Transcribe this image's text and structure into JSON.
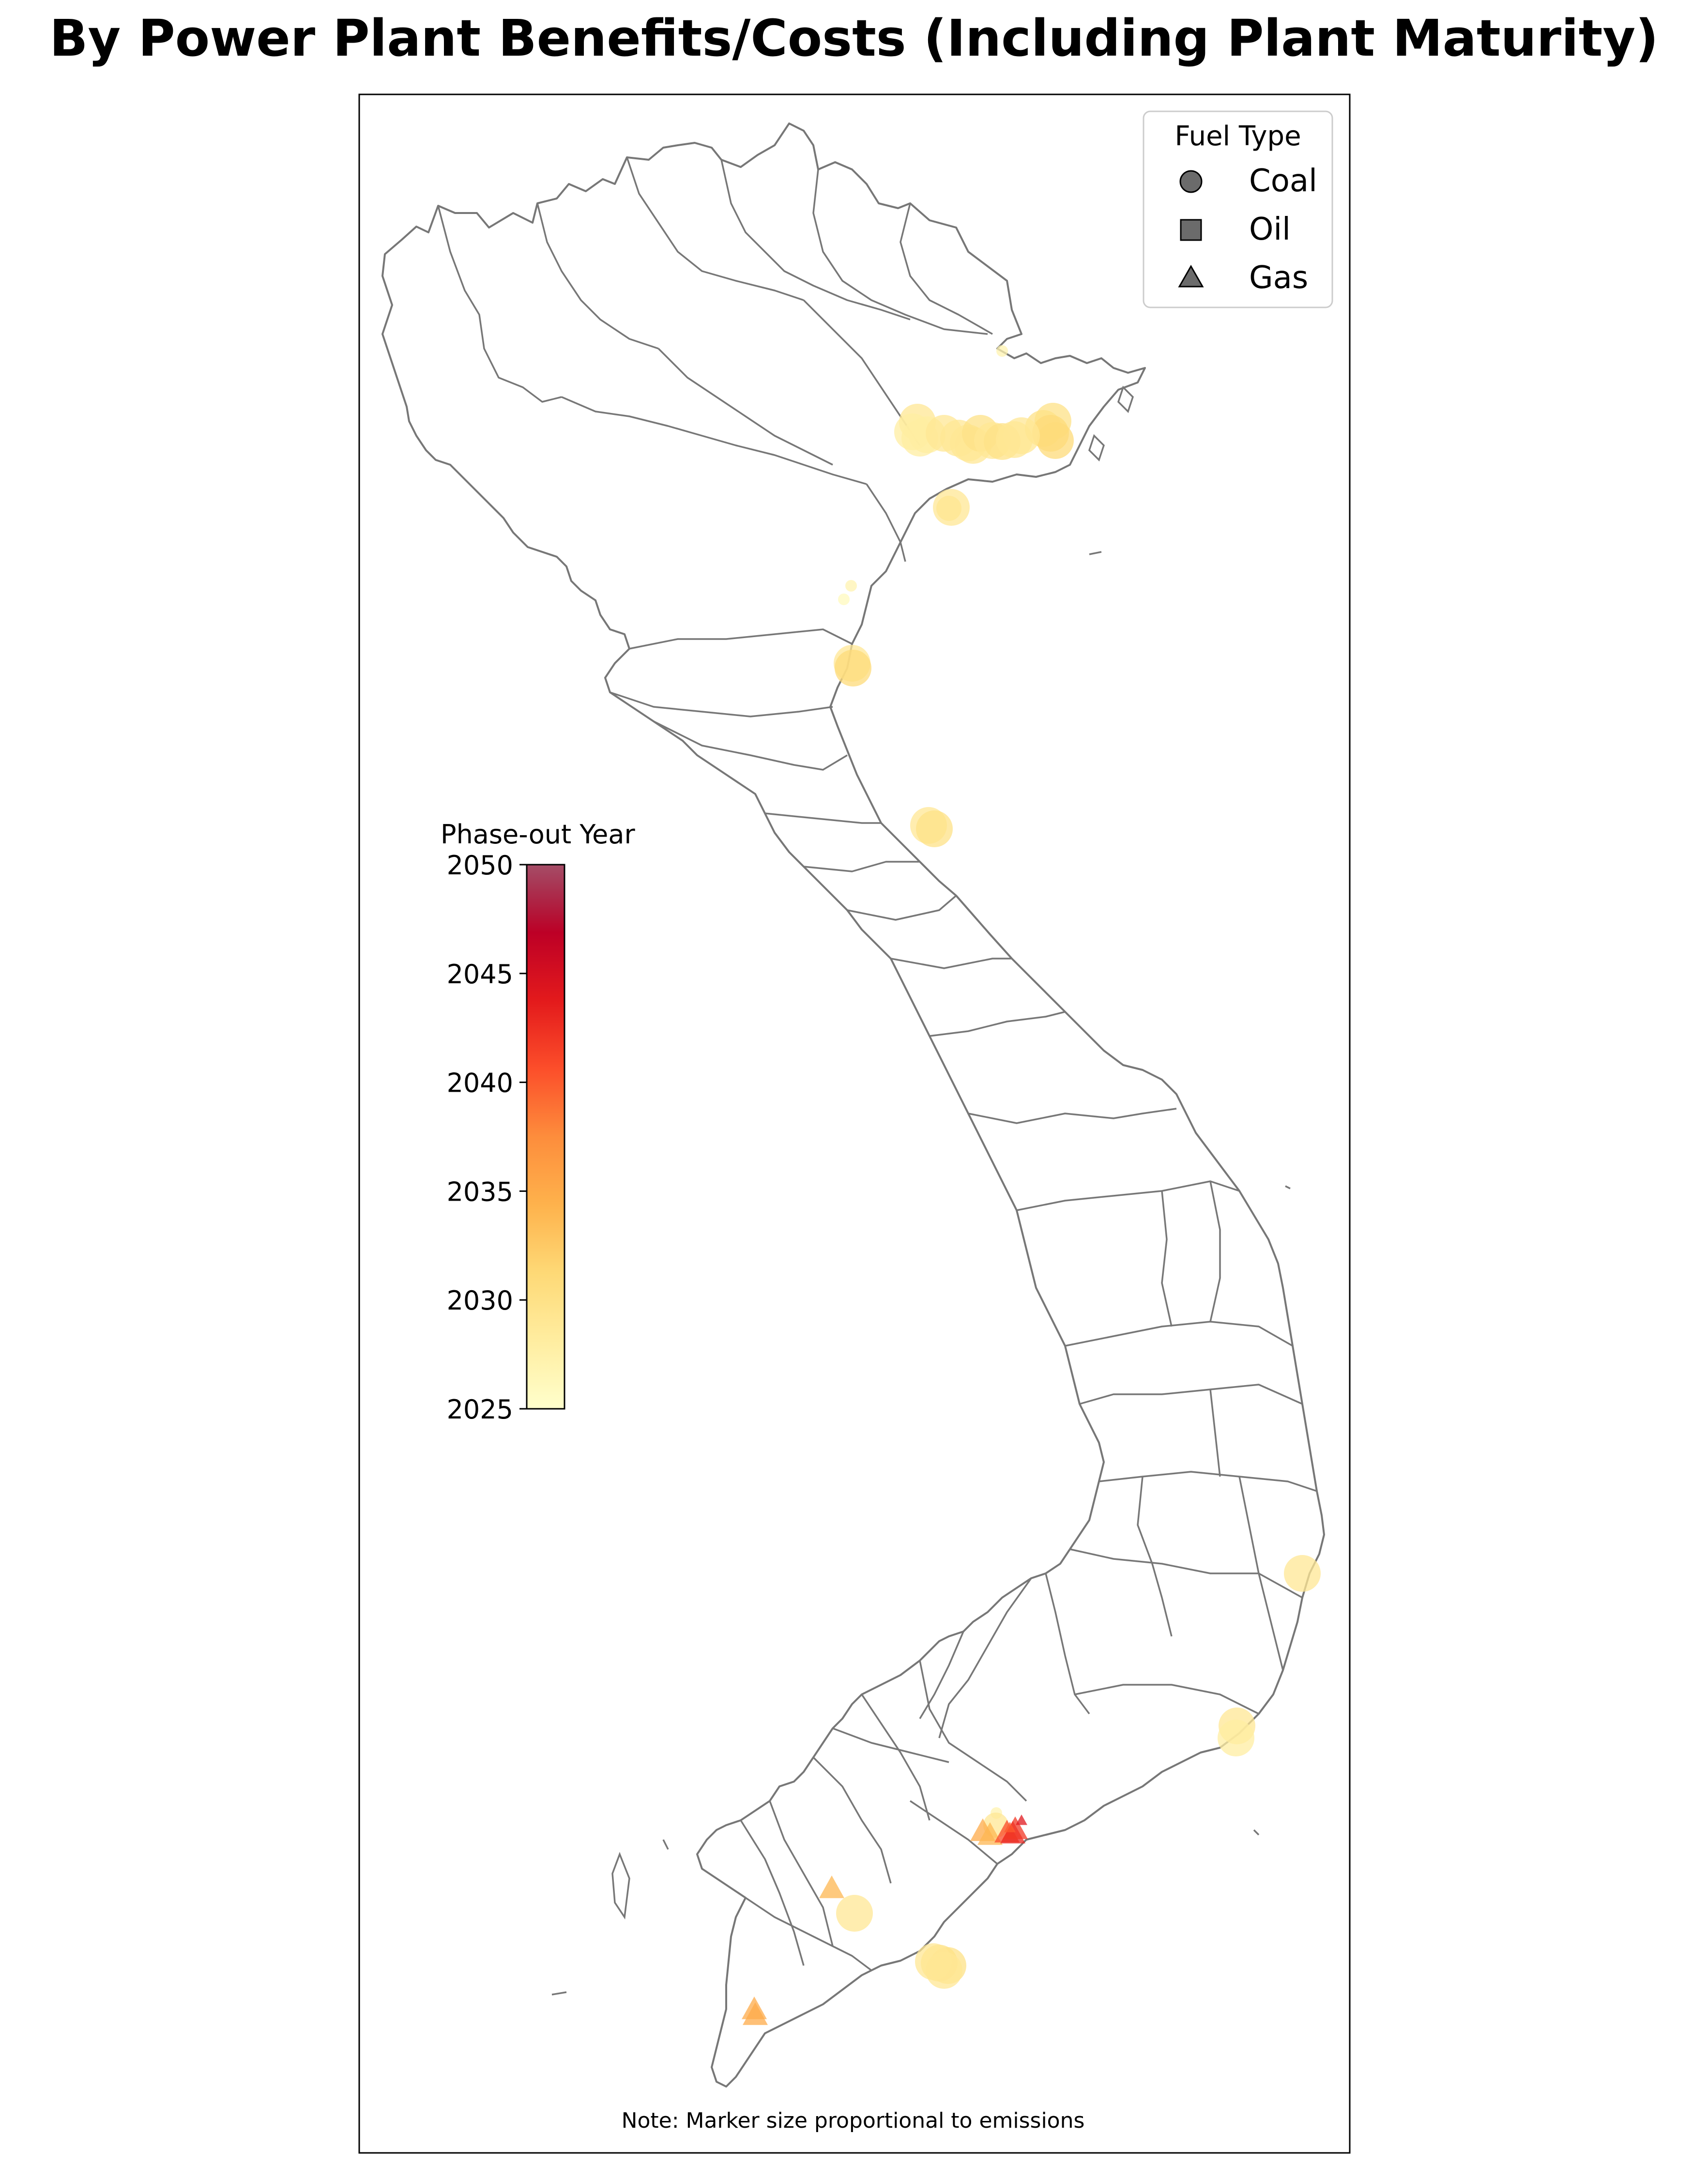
{
  "title": "By Power Plant Benefits/Costs (Including Plant Maturity)",
  "legend": {
    "title": "Fuel Type",
    "items": [
      {
        "label": "Coal",
        "shape": "circle"
      },
      {
        "label": "Oil",
        "shape": "square"
      },
      {
        "label": "Gas",
        "shape": "triangle"
      }
    ]
  },
  "colorbar": {
    "title": "Phase-out Year",
    "min": 2025,
    "max": 2050,
    "ticks": [
      "2025",
      "2030",
      "2035",
      "2040",
      "2045",
      "2050"
    ],
    "colors": [
      "#ffffcc",
      "#ffeda0",
      "#fed976",
      "#feb24c",
      "#fd8d3c",
      "#fc4e2a",
      "#e31a1c",
      "#bd0026",
      "#800026"
    ]
  },
  "note": "Note: Marker size proportional to emissions",
  "plants": [
    {
      "fuel": "Coal",
      "year": 2027,
      "size": "small"
    },
    {
      "fuel": "Coal",
      "year": 2026,
      "size": "small"
    },
    {
      "fuel": "Coal",
      "year": 2030,
      "size": "medium"
    },
    {
      "fuel": "Coal",
      "year": 2029,
      "size": "large"
    },
    {
      "fuel": "Coal",
      "year": 2028,
      "size": "large"
    },
    {
      "fuel": "Coal",
      "year": 2028,
      "size": "large"
    },
    {
      "fuel": "Coal",
      "year": 2028,
      "size": "large"
    },
    {
      "fuel": "Coal",
      "year": 2029,
      "size": "large"
    },
    {
      "fuel": "Coal",
      "year": 2029,
      "size": "large"
    },
    {
      "fuel": "Coal",
      "year": 2029,
      "size": "large"
    },
    {
      "fuel": "Coal",
      "year": 2029,
      "size": "large"
    },
    {
      "fuel": "Coal",
      "year": 2030,
      "size": "large"
    },
    {
      "fuel": "Coal",
      "year": 2029,
      "size": "large"
    },
    {
      "fuel": "Coal",
      "year": 2030,
      "size": "large"
    },
    {
      "fuel": "Coal",
      "year": 2029,
      "size": "large"
    },
    {
      "fuel": "Coal",
      "year": 2027,
      "size": "small"
    },
    {
      "fuel": "Coal",
      "year": 2030,
      "size": "large"
    },
    {
      "fuel": "Coal",
      "year": 2030,
      "size": "large"
    },
    {
      "fuel": "Coal",
      "year": 2031,
      "size": "large"
    },
    {
      "fuel": "Coal",
      "year": 2031,
      "size": "large"
    },
    {
      "fuel": "Coal",
      "year": 2029,
      "size": "large"
    },
    {
      "fuel": "Coal",
      "year": 2029,
      "size": "large"
    },
    {
      "fuel": "Coal",
      "year": 2029,
      "size": "large"
    },
    {
      "fuel": "Coal",
      "year": 2031,
      "size": "large"
    },
    {
      "fuel": "Coal",
      "year": 2029,
      "size": "large"
    },
    {
      "fuel": "Coal",
      "year": 2030,
      "size": "large"
    },
    {
      "fuel": "Coal",
      "year": 2029,
      "size": "large"
    },
    {
      "fuel": "Coal",
      "year": 2029,
      "size": "large"
    },
    {
      "fuel": "Coal",
      "year": 2028,
      "size": "large"
    },
    {
      "fuel": "Coal",
      "year": 2029,
      "size": "large"
    },
    {
      "fuel": "Coal",
      "year": 2027,
      "size": "small"
    },
    {
      "fuel": "Coal",
      "year": 2029,
      "size": "medium"
    },
    {
      "fuel": "Coal",
      "year": 2030,
      "size": "large"
    },
    {
      "fuel": "Coal",
      "year": 2030,
      "size": "large"
    },
    {
      "fuel": "Coal",
      "year": 2029,
      "size": "large"
    },
    {
      "fuel": "Coal",
      "year": 2029,
      "size": "large"
    },
    {
      "fuel": "Gas",
      "year": 2035,
      "size": "medium"
    },
    {
      "fuel": "Gas",
      "year": 2034,
      "size": "medium"
    },
    {
      "fuel": "Gas",
      "year": 2041,
      "size": "medium"
    },
    {
      "fuel": "Gas",
      "year": 2043,
      "size": "medium"
    },
    {
      "fuel": "Gas",
      "year": 2042,
      "size": "medium"
    },
    {
      "fuel": "Gas",
      "year": 2040,
      "size": "small"
    },
    {
      "fuel": "Gas",
      "year": 2044,
      "size": "small"
    },
    {
      "fuel": "Gas",
      "year": 2034,
      "size": "medium"
    },
    {
      "fuel": "Gas",
      "year": 2035,
      "size": "medium"
    },
    {
      "fuel": "Gas",
      "year": 2035,
      "size": "medium"
    }
  ]
}
